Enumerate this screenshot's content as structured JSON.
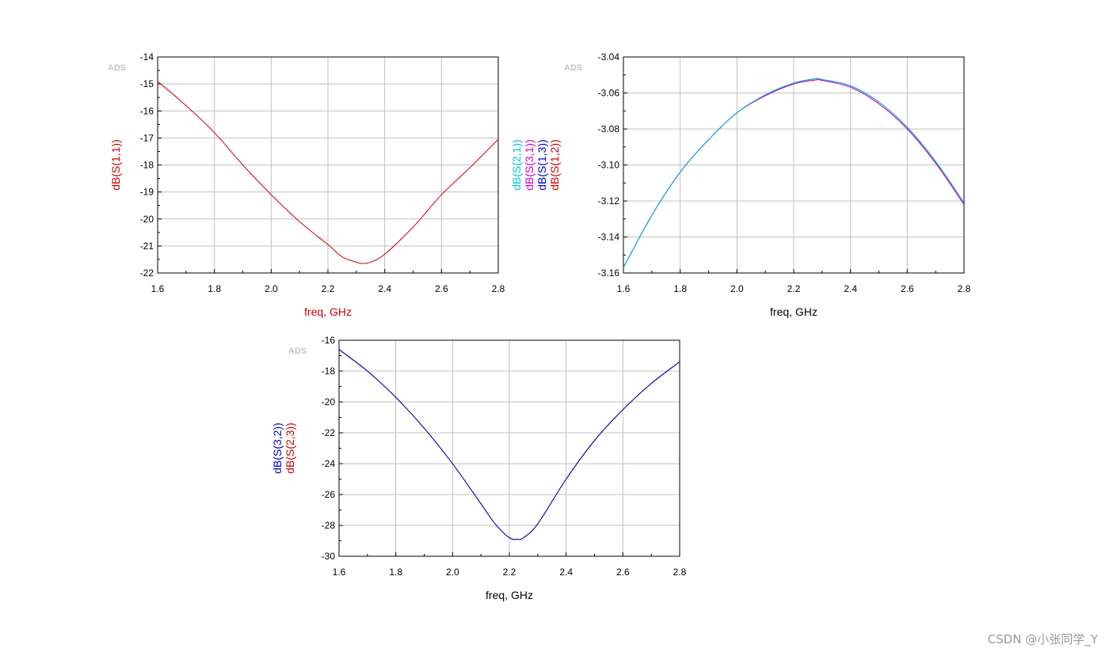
{
  "watermark": "CSDN @小张同学_Y",
  "chart_data": [
    {
      "type": "line",
      "logo": "ADS",
      "xlabel": "freq, GHz",
      "xlabel_color": "#cc0000",
      "xlim": [
        1.6,
        2.8
      ],
      "ylim": [
        -22,
        -14
      ],
      "x_ticks": [
        "1.6",
        "1.8",
        "2.0",
        "2.2",
        "2.4",
        "2.6",
        "2.8"
      ],
      "y_ticks": [
        "-14",
        "-15",
        "-16",
        "-17",
        "-18",
        "-19",
        "-20",
        "-21",
        "-22"
      ],
      "grid": true,
      "x": [
        1.6,
        1.7,
        1.8,
        1.9,
        2.0,
        2.1,
        2.2,
        2.25,
        2.3,
        2.32,
        2.35,
        2.4,
        2.5,
        2.6,
        2.7,
        2.8
      ],
      "series": [
        {
          "name": "dB(S(1,1))",
          "color": "#cc0000",
          "values": [
            -14.9,
            -15.8,
            -16.8,
            -18.0,
            -19.1,
            -20.1,
            -20.95,
            -21.4,
            -21.6,
            -21.65,
            -21.6,
            -21.3,
            -20.3,
            -19.1,
            -18.1,
            -17.05
          ]
        }
      ]
    },
    {
      "type": "line",
      "logo": "ADS",
      "xlabel": "freq, GHz",
      "xlabel_color": "#000000",
      "xlim": [
        1.6,
        2.8
      ],
      "ylim": [
        -3.16,
        -3.04
      ],
      "x_ticks": [
        "1.6",
        "1.8",
        "2.0",
        "2.2",
        "2.4",
        "2.6",
        "2.8"
      ],
      "y_ticks": [
        "-3.04",
        "-3.06",
        "-3.08",
        "-3.10",
        "-3.12",
        "-3.14",
        "-3.16"
      ],
      "grid": true,
      "x": [
        1.6,
        1.7,
        1.8,
        1.9,
        2.0,
        2.1,
        2.2,
        2.28,
        2.3,
        2.4,
        2.5,
        2.6,
        2.7,
        2.8
      ],
      "series": [
        {
          "name": "dB(S(2,1))",
          "color": "#00c8d8",
          "values": [
            -3.157,
            -3.128,
            -3.104,
            -3.086,
            -3.071,
            -3.061,
            -3.0545,
            -3.052,
            -3.0525,
            -3.056,
            -3.065,
            -3.079,
            -3.098,
            -3.121
          ]
        },
        {
          "name": "dB(S(3,1))",
          "color": "#d000d0",
          "values": [
            -3.157,
            -3.128,
            -3.104,
            -3.086,
            -3.071,
            -3.0615,
            -3.055,
            -3.0527,
            -3.053,
            -3.0568,
            -3.066,
            -3.08,
            -3.099,
            -3.122
          ]
        },
        {
          "name": "dB(S(1,3))",
          "color": "#0000c8",
          "values": [
            -3.157,
            -3.128,
            -3.104,
            -3.086,
            -3.071,
            -3.061,
            -3.0545,
            -3.052,
            -3.0525,
            -3.056,
            -3.065,
            -3.079,
            -3.098,
            -3.121
          ]
        },
        {
          "name": "dB(S(1,2))",
          "color": "#cc0000",
          "values": [
            -3.157,
            -3.128,
            -3.104,
            -3.086,
            -3.071,
            -3.0615,
            -3.055,
            -3.0527,
            -3.053,
            -3.0568,
            -3.066,
            -3.08,
            -3.099,
            -3.122
          ]
        }
      ]
    },
    {
      "type": "line",
      "logo": "ADS",
      "xlabel": "freq, GHz",
      "xlabel_color": "#000000",
      "xlim": [
        1.6,
        2.8
      ],
      "ylim": [
        -30,
        -16
      ],
      "x_ticks": [
        "1.6",
        "1.8",
        "2.0",
        "2.2",
        "2.4",
        "2.6",
        "2.8"
      ],
      "y_ticks": [
        "-16",
        "-18",
        "-20",
        "-22",
        "-24",
        "-26",
        "-28",
        "-30"
      ],
      "grid": true,
      "x": [
        1.6,
        1.7,
        1.8,
        1.9,
        2.0,
        2.1,
        2.15,
        2.2,
        2.23,
        2.25,
        2.3,
        2.4,
        2.5,
        2.6,
        2.7,
        2.8
      ],
      "series": [
        {
          "name": "dB(S(3,2))",
          "color": "#0000c8",
          "values": [
            -16.6,
            -18.0,
            -19.7,
            -21.7,
            -24.0,
            -26.6,
            -27.9,
            -28.8,
            -28.9,
            -28.8,
            -27.9,
            -25.0,
            -22.5,
            -20.5,
            -18.8,
            -17.4
          ]
        },
        {
          "name": "dB(S(2,3))",
          "color": "#cc0000",
          "values": [
            -16.6,
            -18.0,
            -19.7,
            -21.7,
            -24.0,
            -26.6,
            -27.9,
            -28.8,
            -28.9,
            -28.8,
            -27.9,
            -25.0,
            -22.5,
            -20.5,
            -18.8,
            -17.4
          ]
        }
      ]
    }
  ]
}
